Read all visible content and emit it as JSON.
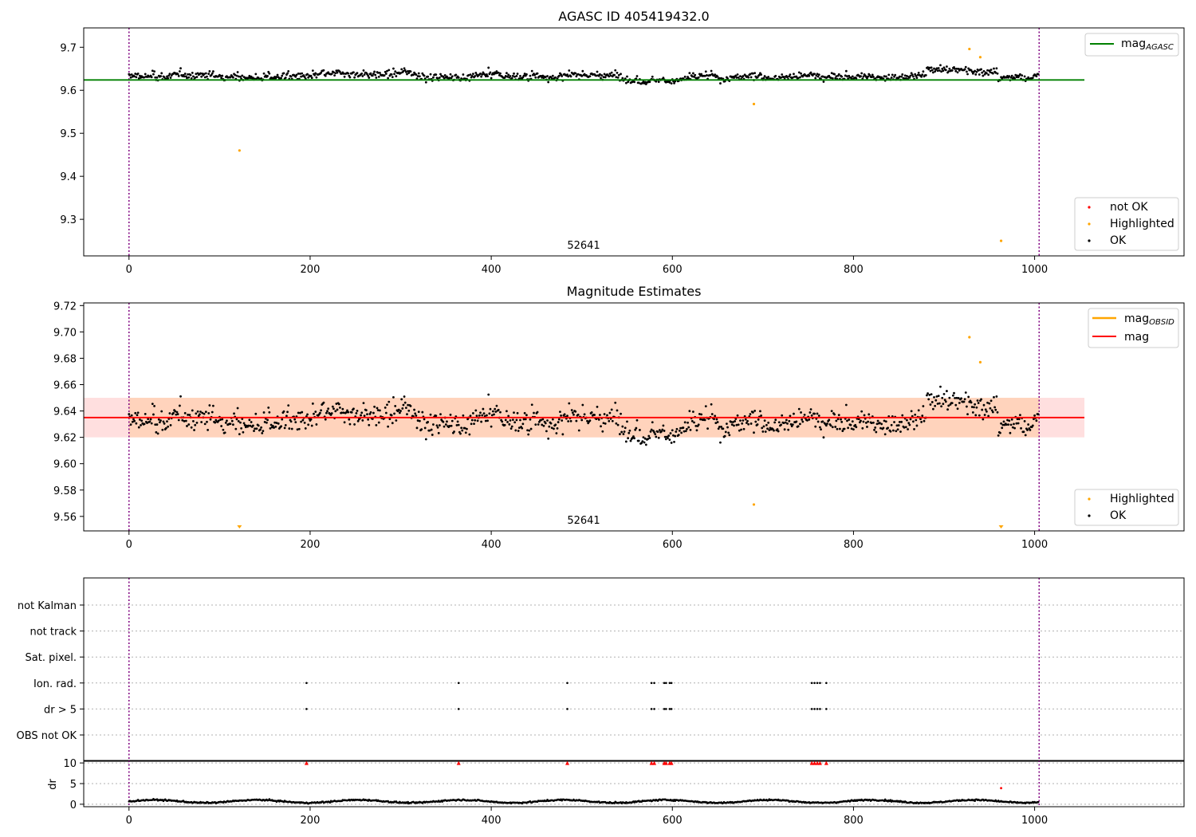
{
  "chart_data": [
    {
      "type": "scatter",
      "title": "AGASC ID 405419432.0",
      "xlim": [
        -50,
        1165
      ],
      "ylim": [
        9.215,
        9.745
      ],
      "xticks": [
        0,
        200,
        400,
        600,
        800,
        1000
      ],
      "yticks": [
        9.3,
        9.4,
        9.5,
        9.6,
        9.7
      ],
      "vlines": [
        0,
        1005
      ],
      "annotation": "52641",
      "reference_line": {
        "label": "mag_AGASC",
        "value": 9.624,
        "x_range": [
          -50,
          1055
        ],
        "color": "#008000"
      },
      "highlighted_points": [
        [
          122,
          9.46
        ],
        [
          690,
          9.568
        ],
        [
          928,
          9.696
        ],
        [
          940,
          9.677
        ],
        [
          963,
          9.25
        ]
      ],
      "ok_series": {
        "n": 1005,
        "baseline": 9.632,
        "noise": 0.011
      },
      "legend": [
        "not OK",
        "Highlighted",
        "OK"
      ],
      "colors": {
        "ok": "#000000",
        "highlighted": "#ffa500",
        "not_ok": "#ff0000"
      }
    },
    {
      "type": "scatter",
      "title": "Magnitude Estimates",
      "xlim": [
        -50,
        1165
      ],
      "ylim": [
        9.549,
        9.722
      ],
      "xticks": [
        0,
        200,
        400,
        600,
        800,
        1000
      ],
      "yticks": [
        9.56,
        9.58,
        9.6,
        9.62,
        9.64,
        9.66,
        9.68,
        9.7,
        9.72
      ],
      "vlines": [
        0,
        1005
      ],
      "annotation": "52641",
      "mean_line": {
        "label": "mag",
        "value": 9.635,
        "x_range": [
          -50,
          1055
        ],
        "color": "#ff0000"
      },
      "obsid_line": {
        "label": "mag_OBSID",
        "color": "#ffa500"
      },
      "band": {
        "low": 9.62,
        "high": 9.65,
        "color": "#ffdfdf"
      },
      "highlighted_points": [
        [
          690,
          9.569
        ],
        [
          928,
          9.696
        ],
        [
          940,
          9.677
        ]
      ],
      "clipped_low_markers": [
        122,
        963
      ],
      "ok_series": {
        "n": 1005,
        "baseline": 9.632,
        "noise": 0.011
      },
      "legend": [
        "Highlighted",
        "OK"
      ],
      "colors": {
        "ok": "#000000",
        "highlighted": "#ffa500"
      }
    },
    {
      "type": "scatter",
      "title": "",
      "xlim": [
        -50,
        1165
      ],
      "categories": [
        "not Kalman",
        "not track",
        "Sat. pixel.",
        "Ion. rad.",
        "dr > 5",
        "OBS not OK"
      ],
      "flag_x": [
        196,
        364,
        484,
        577,
        580,
        591,
        593,
        597,
        599,
        754,
        757,
        760,
        763,
        770
      ],
      "vlines": [
        0,
        1005
      ]
    },
    {
      "type": "scatter",
      "title": "",
      "xlim": [
        -50,
        1165
      ],
      "ylim": [
        -0.6,
        10.6
      ],
      "xticks": [
        0,
        200,
        400,
        600,
        800,
        1000
      ],
      "yticks": [
        0,
        5,
        10
      ],
      "ylabel": "dr",
      "vlines": [
        0,
        1005
      ],
      "clipped_high_markers": [
        196,
        364,
        484,
        577,
        580,
        591,
        593,
        597,
        599,
        754,
        757,
        760,
        763,
        770
      ],
      "highlighted_points": [
        [
          963,
          3.9
        ]
      ],
      "ok_series": {
        "n": 1005,
        "baseline": 0.7,
        "noise": 0.25
      },
      "colors": {
        "ok": "#000000",
        "flagged": "#ff0000"
      }
    }
  ]
}
